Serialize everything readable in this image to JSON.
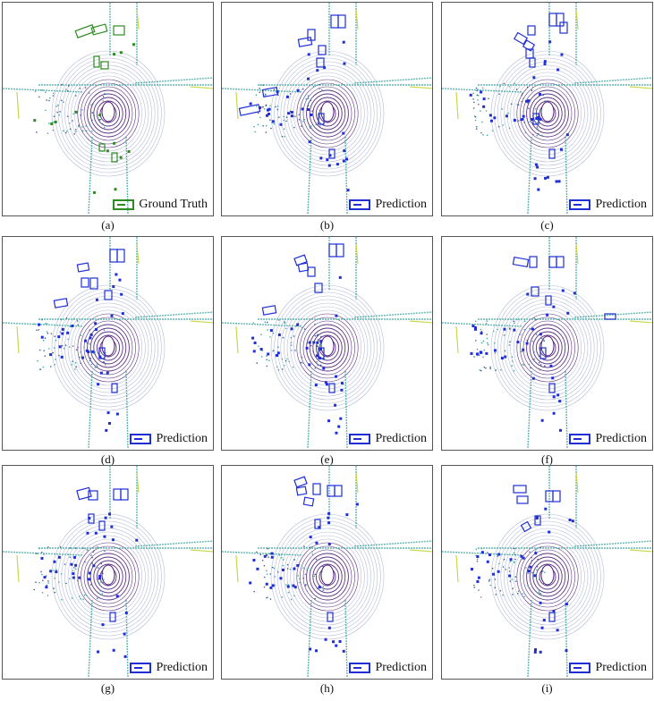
{
  "panels": [
    {
      "id": "a",
      "caption": "(a)",
      "legend": "Ground Truth",
      "variant": "gt",
      "color": "#2e8b22"
    },
    {
      "id": "b",
      "caption": "(b)",
      "legend": "Prediction",
      "variant": "pred",
      "color": "#1f2fd6"
    },
    {
      "id": "c",
      "caption": "(c)",
      "legend": "Prediction",
      "variant": "pred",
      "color": "#1f2fd6"
    },
    {
      "id": "d",
      "caption": "(d)",
      "legend": "Prediction",
      "variant": "pred",
      "color": "#1f2fd6"
    },
    {
      "id": "e",
      "caption": "(e)",
      "legend": "Prediction",
      "variant": "pred",
      "color": "#1f2fd6"
    },
    {
      "id": "f",
      "caption": "(f)",
      "legend": "Prediction",
      "variant": "pred",
      "color": "#1f2fd6"
    },
    {
      "id": "g",
      "caption": "(g)",
      "legend": "Prediction",
      "variant": "pred",
      "color": "#1f2fd6"
    },
    {
      "id": "h",
      "caption": "(h)",
      "legend": "Prediction",
      "variant": "pred",
      "color": "#1f2fd6"
    },
    {
      "id": "i",
      "caption": "(i)",
      "legend": "Prediction",
      "variant": "pred",
      "color": "#1f2fd6"
    }
  ],
  "colors": {
    "ring": "#4b1a78",
    "road": "#3aa6a0",
    "far": "#c9d84a"
  }
}
